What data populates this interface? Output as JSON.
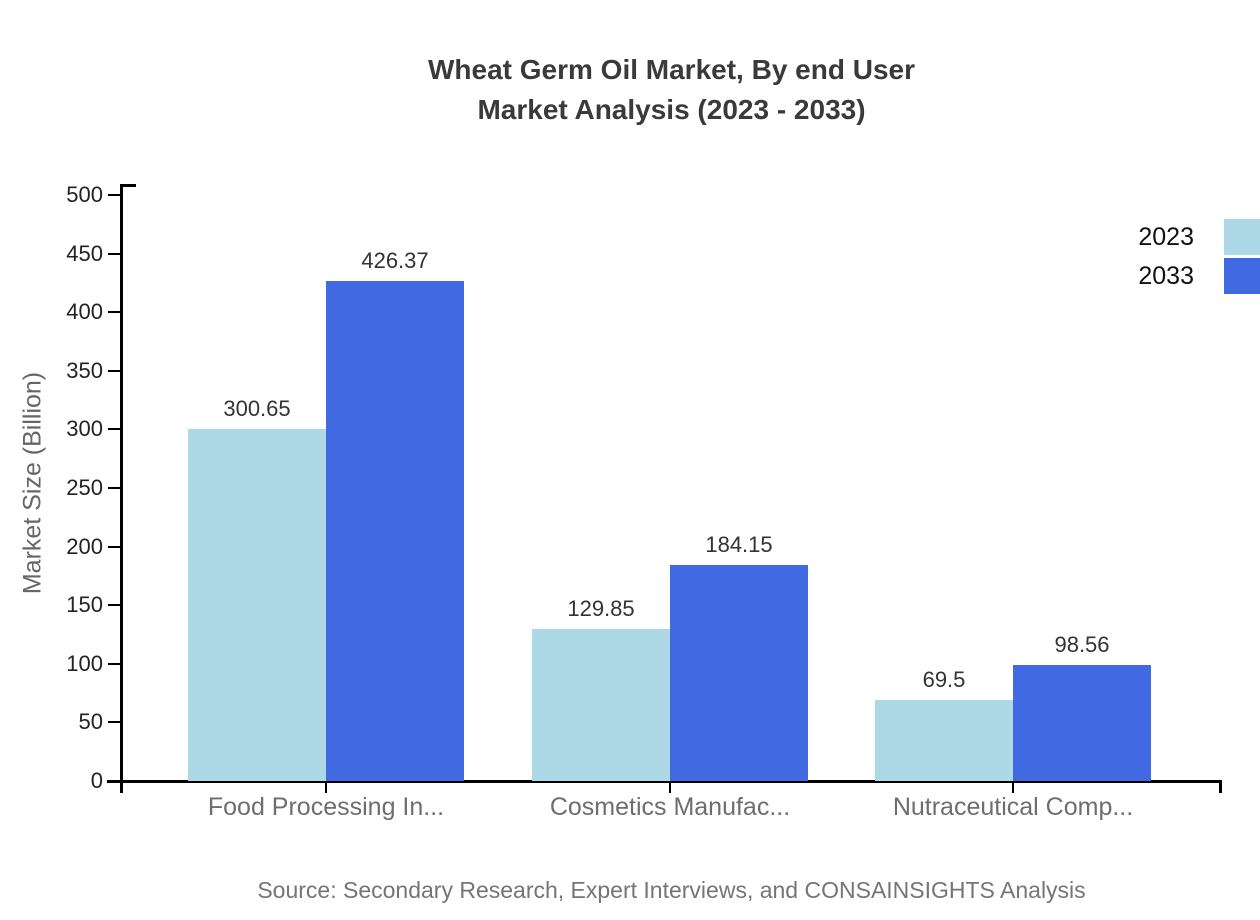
{
  "chart_data": {
    "type": "bar",
    "title_line1": "Wheat Germ Oil Market, By end User",
    "title_line2": "Market Analysis (2023 - 2033)",
    "xlabel": "",
    "ylabel": "Market Size (Billion)",
    "categories": [
      "Food Processing In...",
      "Cosmetics Manufac...",
      "Nutraceutical Comp..."
    ],
    "series": [
      {
        "name": "2023",
        "color": "#ADD8E6",
        "values": [
          300.65,
          129.85,
          69.5
        ]
      },
      {
        "name": "2033",
        "color": "#4169E1",
        "values": [
          426.37,
          184.15,
          98.56
        ]
      }
    ],
    "ylim": [
      0,
      500
    ],
    "yticks": [
      0,
      50,
      100,
      150,
      200,
      250,
      300,
      350,
      400,
      450,
      500
    ],
    "grid": false,
    "legend_position": "top-right",
    "source": "Source: Secondary Research, Expert Interviews, and CONSAINSIGHTS Analysis"
  },
  "colors": {
    "title_text": "#3a3a3a",
    "axis": "#000000",
    "tick_label": "#222222",
    "data_label": "#333333",
    "category_label": "#6e6e6e",
    "muted_text": "#757575",
    "legend_text": "#111111",
    "background": "#ffffff"
  }
}
